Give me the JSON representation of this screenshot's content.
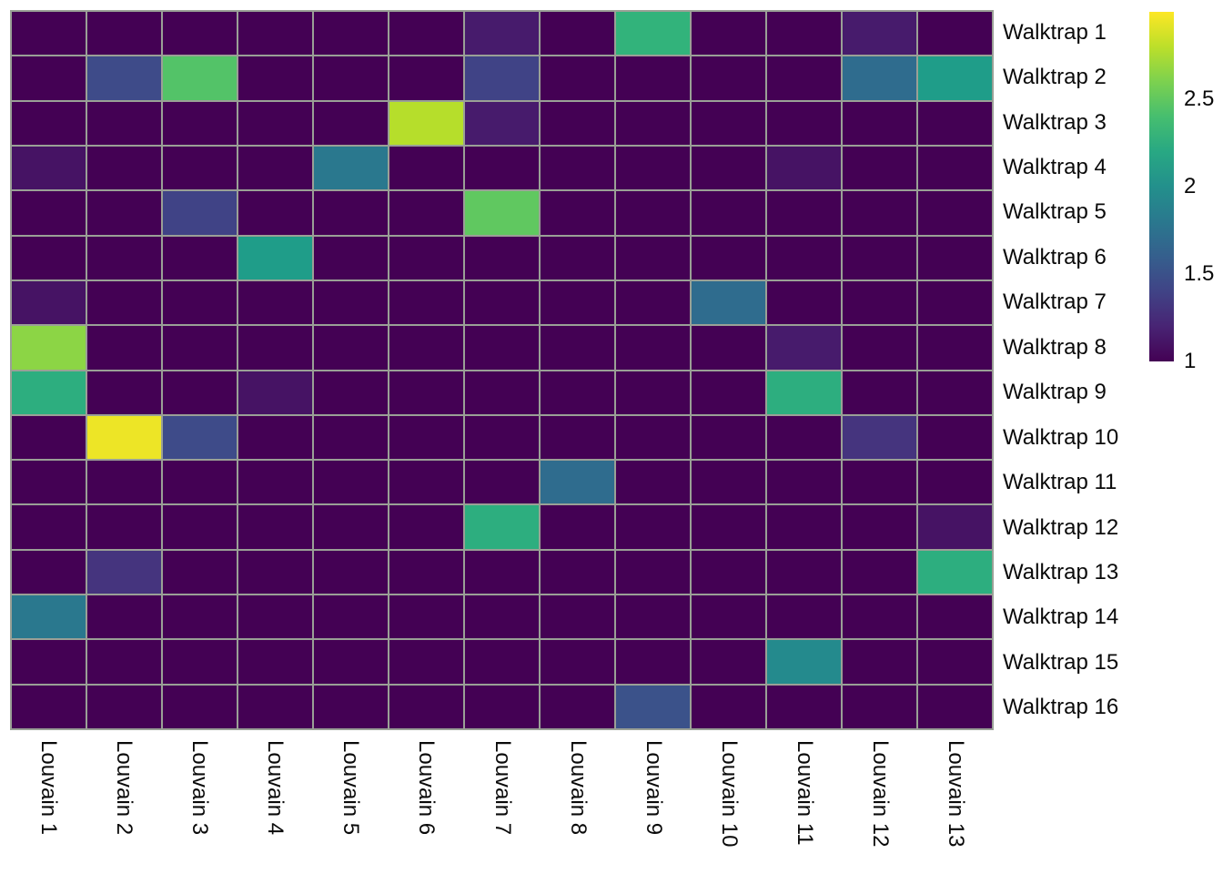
{
  "figure": {
    "background_color": "#ffffff",
    "grid_line_color": "#9aa096",
    "label_color": "#0a0a0a"
  },
  "chart_data": {
    "type": "heatmap",
    "title": "",
    "x_axis": {
      "label": "",
      "categories": [
        "Louvain 1",
        "Louvain 2",
        "Louvain 3",
        "Louvain 4",
        "Louvain 5",
        "Louvain 6",
        "Louvain 7",
        "Louvain 8",
        "Louvain 9",
        "Louvain 10",
        "Louvain 11",
        "Louvain 12",
        "Louvain 13"
      ]
    },
    "y_axis": {
      "label": "",
      "categories": [
        "Walktrap 1",
        "Walktrap 2",
        "Walktrap 3",
        "Walktrap 4",
        "Walktrap 5",
        "Walktrap 6",
        "Walktrap 7",
        "Walktrap 8",
        "Walktrap 9",
        "Walktrap 10",
        "Walktrap 11",
        "Walktrap 12",
        "Walktrap 13",
        "Walktrap 14",
        "Walktrap 15",
        "Walktrap 16"
      ]
    },
    "colorbar": {
      "colormap": "viridis",
      "min": 1,
      "max": 3,
      "tick_labels": [
        "2.5",
        "2",
        "1.5",
        "1"
      ],
      "tick_values": [
        2.5,
        2,
        1.5,
        1
      ],
      "legend_position": "right"
    },
    "grid": true,
    "values": [
      [
        1,
        1,
        1,
        1,
        1,
        1,
        1.15,
        1,
        2.3,
        1,
        1,
        1.15,
        1
      ],
      [
        1,
        1.45,
        2.45,
        1,
        1,
        1,
        1.4,
        1,
        1,
        1,
        1,
        1.7,
        2.1
      ],
      [
        1,
        1,
        1,
        1,
        1,
        2.78,
        1.15,
        1,
        1,
        1,
        1,
        1,
        1
      ],
      [
        1.1,
        1,
        1,
        1,
        1.8,
        1,
        1,
        1,
        1,
        1,
        1.1,
        1,
        1
      ],
      [
        1,
        1,
        1.4,
        1,
        1,
        1,
        2.5,
        1,
        1,
        1,
        1,
        1,
        1
      ],
      [
        1,
        1,
        1,
        2.1,
        1,
        1,
        1,
        1,
        1,
        1,
        1,
        1,
        1
      ],
      [
        1.1,
        1,
        1,
        1,
        1,
        1,
        1,
        1,
        1,
        1.7,
        1,
        1,
        1
      ],
      [
        2.65,
        1,
        1,
        1,
        1,
        1,
        1,
        1,
        1,
        1,
        1.15,
        1,
        1
      ],
      [
        2.25,
        1,
        1,
        1.1,
        1,
        1,
        1,
        1,
        1,
        1,
        2.25,
        1,
        1
      ],
      [
        1,
        2.95,
        1.45,
        1,
        1,
        1,
        1,
        1,
        1,
        1,
        1,
        1.3,
        1
      ],
      [
        1,
        1,
        1,
        1,
        1,
        1,
        1,
        1.7,
        1,
        1,
        1,
        1,
        1
      ],
      [
        1,
        1,
        1,
        1,
        1,
        1,
        2.25,
        1,
        1,
        1,
        1,
        1,
        1.1
      ],
      [
        1,
        1.3,
        1,
        1,
        1,
        1,
        1,
        1,
        1,
        1,
        1,
        1,
        2.25
      ],
      [
        1.8,
        1,
        1,
        1,
        1,
        1,
        1,
        1,
        1,
        1,
        1,
        1,
        1
      ],
      [
        1,
        1,
        1,
        1,
        1,
        1,
        1,
        1,
        1,
        1,
        1.95,
        1,
        1
      ],
      [
        1,
        1,
        1,
        1,
        1,
        1,
        1,
        1,
        1.5,
        1,
        1,
        1,
        1
      ]
    ]
  }
}
